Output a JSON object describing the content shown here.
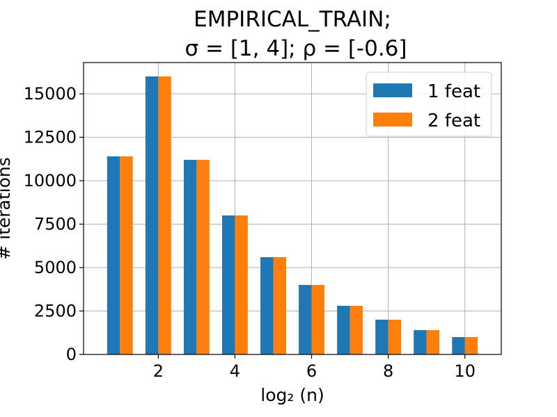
{
  "chart_data": {
    "type": "bar",
    "title_line1": "EMPIRICAL_TRAIN;",
    "title_line2": "σ = [1, 4];  ρ = [-0.6]",
    "xlabel": "log₂ (n)",
    "ylabel": "# iterations",
    "x": [
      1,
      2,
      3,
      4,
      5,
      6,
      7,
      8,
      9,
      10
    ],
    "series": [
      {
        "name": "1 feat",
        "color": "#1f77b4",
        "values": [
          11400,
          16000,
          11200,
          8000,
          5600,
          4000,
          2800,
          2000,
          1400,
          1000
        ]
      },
      {
        "name": "2 feat",
        "color": "#ff7f0e",
        "values": [
          11400,
          16000,
          11200,
          8000,
          5600,
          4000,
          2800,
          2000,
          1400,
          1000
        ]
      }
    ],
    "xticks": [
      2,
      4,
      6,
      8,
      10
    ],
    "yticks": [
      0,
      2500,
      5000,
      7500,
      10000,
      12500,
      15000
    ],
    "xlim": [
      0.05,
      10.95
    ],
    "ylim": [
      0,
      16800
    ],
    "grid": true,
    "legend_position": "top-right"
  }
}
